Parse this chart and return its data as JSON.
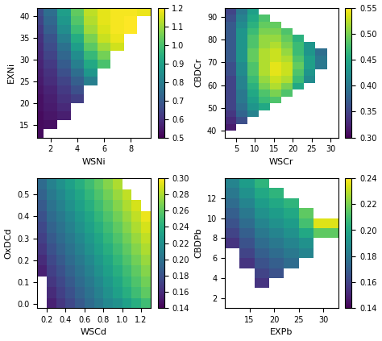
{
  "figsize": [
    4.74,
    4.23
  ],
  "dpi": 100,
  "colormap": "viridis",
  "plots": [
    {
      "xlabel": "WSNi",
      "ylabel": "EXNi",
      "vmin": 0.5,
      "vmax": 1.2,
      "cbarticks": [
        0.5,
        0.6,
        0.7,
        0.8,
        0.9,
        1.0,
        1.1,
        1.2
      ],
      "x_edges": [
        1.0,
        1.5,
        2.5,
        3.5,
        4.5,
        5.5,
        6.5,
        7.5,
        8.5,
        9.5
      ],
      "y_edges": [
        12,
        14,
        16,
        18,
        20,
        22,
        24,
        26,
        28,
        30,
        32,
        34,
        36,
        38,
        40,
        42
      ],
      "x_ticks": [
        2,
        4,
        6,
        8
      ],
      "y_ticks": [
        15,
        20,
        25,
        30,
        35,
        40
      ],
      "xlim": [
        1.0,
        9.5
      ],
      "ylim": [
        12,
        42
      ],
      "data": [
        [
          0.52,
          null,
          null,
          null,
          null,
          null,
          null,
          null,
          null
        ],
        [
          0.52,
          0.53,
          null,
          null,
          null,
          null,
          null,
          null,
          null
        ],
        [
          0.52,
          0.54,
          0.56,
          null,
          null,
          null,
          null,
          null,
          null
        ],
        [
          0.53,
          0.55,
          0.58,
          null,
          null,
          null,
          null,
          null,
          null
        ],
        [
          0.53,
          0.56,
          0.6,
          0.63,
          null,
          null,
          null,
          null,
          null
        ],
        [
          0.54,
          0.57,
          0.62,
          0.67,
          null,
          null,
          null,
          null,
          null
        ],
        [
          0.55,
          0.59,
          0.64,
          0.71,
          0.8,
          null,
          null,
          null,
          null
        ],
        [
          0.56,
          0.6,
          0.67,
          0.75,
          0.87,
          null,
          null,
          null,
          null
        ],
        [
          0.57,
          0.62,
          0.7,
          0.8,
          0.92,
          1.0,
          null,
          null,
          null
        ],
        [
          0.58,
          0.64,
          0.73,
          0.84,
          0.97,
          1.05,
          null,
          null,
          null
        ],
        [
          0.59,
          0.66,
          0.76,
          0.89,
          1.02,
          1.1,
          1.15,
          null,
          null
        ],
        [
          0.6,
          0.68,
          0.8,
          0.93,
          1.06,
          1.14,
          1.18,
          null,
          null
        ],
        [
          0.62,
          0.71,
          0.84,
          0.98,
          1.1,
          1.16,
          1.19,
          1.2,
          null
        ],
        [
          0.64,
          0.73,
          0.87,
          1.01,
          1.12,
          1.17,
          1.19,
          1.2,
          null
        ],
        [
          0.66,
          0.75,
          0.89,
          1.03,
          1.13,
          1.17,
          1.19,
          1.19,
          1.18
        ]
      ]
    },
    {
      "xlabel": "WSCr",
      "ylabel": "CBDCr",
      "vmin": 0.3,
      "vmax": 0.55,
      "cbarticks": [
        0.3,
        0.35,
        0.4,
        0.45,
        0.5,
        0.55
      ],
      "x_edges": [
        2,
        5,
        8,
        11,
        14,
        17,
        20,
        23,
        26,
        29,
        32
      ],
      "y_edges": [
        37,
        40,
        43,
        46,
        49,
        52,
        55,
        58,
        61,
        64,
        67,
        70,
        73,
        76,
        79,
        82,
        85,
        88,
        91,
        94
      ],
      "x_ticks": [
        5,
        10,
        15,
        20,
        25,
        30
      ],
      "y_ticks": [
        40,
        50,
        60,
        70,
        80,
        90
      ],
      "xlim": [
        2,
        32
      ],
      "ylim": [
        37,
        94
      ],
      "data": [
        [
          null,
          null,
          null,
          null,
          null,
          null,
          null,
          null,
          null,
          null
        ],
        [
          0.32,
          null,
          null,
          null,
          null,
          null,
          null,
          null,
          null,
          null
        ],
        [
          0.33,
          0.36,
          null,
          null,
          null,
          null,
          null,
          null,
          null,
          null
        ],
        [
          0.34,
          0.38,
          0.41,
          null,
          null,
          null,
          null,
          null,
          null,
          null
        ],
        [
          0.35,
          0.39,
          0.43,
          0.45,
          null,
          null,
          null,
          null,
          null,
          null
        ],
        [
          0.35,
          0.4,
          0.44,
          0.47,
          0.48,
          null,
          null,
          null,
          null,
          null
        ],
        [
          0.35,
          0.4,
          0.45,
          0.48,
          0.5,
          0.48,
          null,
          null,
          null,
          null
        ],
        [
          0.35,
          0.41,
          0.46,
          0.5,
          0.52,
          0.5,
          0.45,
          null,
          null,
          null
        ],
        [
          0.35,
          0.41,
          0.47,
          0.51,
          0.53,
          0.52,
          0.47,
          0.42,
          null,
          null
        ],
        [
          0.36,
          0.42,
          0.48,
          0.52,
          0.54,
          0.53,
          0.48,
          0.43,
          null,
          null
        ],
        [
          0.36,
          0.42,
          0.48,
          0.52,
          0.54,
          0.53,
          0.49,
          0.44,
          0.4,
          null
        ],
        [
          0.37,
          0.43,
          0.49,
          0.52,
          0.53,
          0.52,
          0.48,
          0.44,
          0.4,
          null
        ],
        [
          0.37,
          0.43,
          0.49,
          0.52,
          0.53,
          0.51,
          0.47,
          0.43,
          0.39,
          null
        ],
        [
          0.37,
          0.43,
          0.48,
          0.51,
          0.52,
          0.5,
          0.47,
          0.43,
          null,
          null
        ],
        [
          0.37,
          0.43,
          0.48,
          0.51,
          0.51,
          0.49,
          0.46,
          null,
          null,
          null
        ],
        [
          0.37,
          0.43,
          0.47,
          0.5,
          0.5,
          0.48,
          null,
          null,
          null,
          null
        ],
        [
          0.37,
          0.42,
          0.46,
          0.49,
          0.49,
          null,
          null,
          null,
          null,
          null
        ],
        [
          0.36,
          0.41,
          0.45,
          0.48,
          null,
          null,
          null,
          null,
          null,
          null
        ],
        [
          0.35,
          0.4,
          0.44,
          null,
          null,
          null,
          null,
          null,
          null,
          null
        ]
      ]
    },
    {
      "xlabel": "WSCd",
      "ylabel": "OxDCd",
      "vmin": 0.14,
      "vmax": 0.3,
      "cbarticks": [
        0.14,
        0.16,
        0.18,
        0.2,
        0.22,
        0.24,
        0.26,
        0.28,
        0.3
      ],
      "x_edges": [
        0.1,
        0.2,
        0.3,
        0.4,
        0.5,
        0.6,
        0.7,
        0.8,
        0.9,
        1.0,
        1.1,
        1.2,
        1.3
      ],
      "y_edges": [
        -0.02,
        0.025,
        0.075,
        0.125,
        0.175,
        0.225,
        0.275,
        0.325,
        0.375,
        0.425,
        0.475,
        0.525,
        0.575
      ],
      "x_ticks": [
        0.2,
        0.4,
        0.6,
        0.8,
        1.0,
        1.2
      ],
      "y_ticks": [
        0.0,
        0.1,
        0.2,
        0.3,
        0.4,
        0.5
      ],
      "xlim": [
        0.1,
        1.3
      ],
      "ylim": [
        -0.02,
        0.575
      ],
      "data": [
        [
          null,
          0.155,
          0.165,
          0.175,
          0.185,
          0.195,
          0.205,
          0.215,
          0.22,
          0.23,
          0.24,
          0.25
        ],
        [
          null,
          0.16,
          0.17,
          0.18,
          0.19,
          0.2,
          0.21,
          0.22,
          0.23,
          0.24,
          0.25,
          0.26
        ],
        [
          null,
          0.165,
          0.175,
          0.185,
          0.195,
          0.205,
          0.215,
          0.225,
          0.235,
          0.245,
          0.255,
          0.265
        ],
        [
          0.155,
          0.17,
          0.18,
          0.19,
          0.2,
          0.21,
          0.22,
          0.23,
          0.24,
          0.25,
          0.26,
          0.27
        ],
        [
          0.16,
          0.175,
          0.185,
          0.195,
          0.205,
          0.215,
          0.225,
          0.235,
          0.245,
          0.255,
          0.265,
          0.275
        ],
        [
          0.165,
          0.18,
          0.19,
          0.2,
          0.21,
          0.22,
          0.23,
          0.24,
          0.25,
          0.26,
          0.27,
          0.28
        ],
        [
          0.17,
          0.185,
          0.195,
          0.205,
          0.215,
          0.225,
          0.235,
          0.245,
          0.255,
          0.265,
          0.275,
          0.285
        ],
        [
          0.175,
          0.19,
          0.2,
          0.21,
          0.22,
          0.23,
          0.24,
          0.25,
          0.26,
          0.27,
          0.28,
          0.29
        ],
        [
          0.18,
          0.195,
          0.205,
          0.215,
          0.225,
          0.235,
          0.245,
          0.255,
          0.265,
          0.275,
          0.285,
          0.295
        ],
        [
          0.185,
          0.2,
          0.21,
          0.22,
          0.23,
          0.24,
          0.25,
          0.26,
          0.27,
          0.28,
          0.29,
          null
        ],
        [
          0.19,
          0.205,
          0.215,
          0.225,
          0.235,
          0.245,
          0.255,
          0.265,
          0.275,
          0.285,
          null,
          null
        ],
        [
          0.195,
          0.21,
          0.22,
          0.23,
          0.24,
          0.25,
          0.26,
          0.27,
          0.28,
          null,
          null,
          null
        ]
      ]
    },
    {
      "xlabel": "EXPb",
      "ylabel": "CBDPb",
      "vmin": 0.14,
      "vmax": 0.24,
      "cbarticks": [
        0.14,
        0.16,
        0.18,
        0.2,
        0.22,
        0.24
      ],
      "x_edges": [
        10,
        13,
        16,
        19,
        22,
        25,
        28,
        33
      ],
      "y_edges": [
        1,
        2,
        3,
        4,
        5,
        6,
        7,
        8,
        9,
        10,
        11,
        12,
        13,
        14
      ],
      "x_ticks": [
        15,
        20,
        25,
        30
      ],
      "y_ticks": [
        2,
        4,
        6,
        8,
        10,
        12
      ],
      "xlim": [
        10,
        33
      ],
      "ylim": [
        1,
        14
      ],
      "data": [
        [
          null,
          null,
          null,
          null,
          null,
          null,
          null
        ],
        [
          null,
          null,
          null,
          null,
          null,
          null,
          null
        ],
        [
          null,
          null,
          0.155,
          null,
          null,
          null,
          null
        ],
        [
          null,
          null,
          0.16,
          0.165,
          null,
          null,
          null
        ],
        [
          null,
          0.155,
          0.165,
          0.17,
          0.175,
          null,
          null
        ],
        [
          null,
          0.16,
          0.17,
          0.175,
          0.18,
          0.185,
          null
        ],
        [
          0.155,
          0.165,
          0.175,
          0.18,
          0.185,
          0.19,
          null
        ],
        [
          0.16,
          0.17,
          0.18,
          0.185,
          0.19,
          0.2,
          0.215
        ],
        [
          0.165,
          0.175,
          0.185,
          0.19,
          0.195,
          0.21,
          0.235
        ],
        [
          0.17,
          0.18,
          0.19,
          0.195,
          0.2,
          0.215,
          null
        ],
        [
          0.175,
          0.185,
          0.195,
          0.2,
          0.205,
          null,
          null
        ],
        [
          0.18,
          0.19,
          0.2,
          0.205,
          null,
          null,
          null
        ],
        [
          0.185,
          0.195,
          0.205,
          null,
          null,
          null,
          null
        ]
      ]
    }
  ]
}
